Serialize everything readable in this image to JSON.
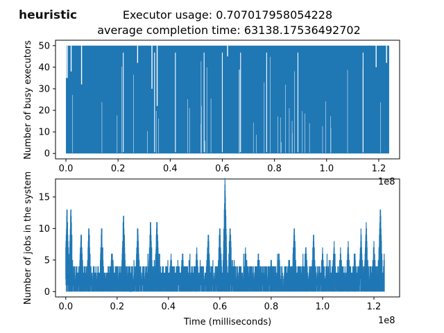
{
  "badge": "heuristic",
  "title_line1": "Executor usage: 0.707017958054228",
  "title_line2": "average completion time: 63138.17536492702",
  "colors": {
    "series": "#1f77b4",
    "axes": "#000000",
    "background": "#ffffff"
  },
  "chart_data": [
    {
      "type": "line",
      "ylabel": "Number of busy executors",
      "xlabel": "",
      "x_multiplier": "1e8",
      "xlim": [
        -0.04,
        1.28
      ],
      "ylim": [
        -2.5,
        52.5
      ],
      "xticks": [
        "0.0",
        "0.2",
        "0.4",
        "0.6",
        "0.8",
        "1.0",
        "1.2"
      ],
      "yticks": [
        "0",
        "10",
        "20",
        "30",
        "40",
        "50"
      ],
      "grid": false,
      "series": [
        {
          "x_range": [
            0.0,
            1.24
          ],
          "y_range": [
            0,
            50
          ],
          "baseline": 0,
          "saturation": 50,
          "gaps_x": [
            0.22,
            0.34,
            0.42,
            0.53,
            0.6,
            0.67,
            0.77,
            0.89,
            1.14
          ],
          "peaks": [
            {
              "x": 0.0,
              "y": 35
            },
            {
              "x": 0.005,
              "y": 35
            },
            {
              "x": 0.02,
              "y": 38
            },
            {
              "x": 0.06,
              "y": 32
            },
            {
              "x": 0.275,
              "y": 42
            },
            {
              "x": 0.33,
              "y": 30
            },
            {
              "x": 0.35,
              "y": 22
            },
            {
              "x": 0.62,
              "y": 45
            },
            {
              "x": 1.19,
              "y": 40
            },
            {
              "x": 1.23,
              "y": 42
            }
          ]
        }
      ]
    },
    {
      "type": "line",
      "ylabel": "Number of jobs in the system",
      "xlabel": "Time (milliseconds)",
      "x_multiplier": "1e8",
      "xlim": [
        -0.04,
        1.3
      ],
      "ylim": [
        -0.85,
        17.85
      ],
      "xticks": [
        "0.0",
        "0.2",
        "0.4",
        "0.6",
        "0.8",
        "1.0",
        "1.2"
      ],
      "yticks": [
        "0",
        "5",
        "10",
        "15"
      ],
      "grid": false,
      "series": [
        {
          "x_range": [
            0.0,
            1.24
          ],
          "y_range": [
            0,
            17
          ],
          "peaks": [
            {
              "x": 0.005,
              "y": 13
            },
            {
              "x": 0.02,
              "y": 13
            },
            {
              "x": 0.06,
              "y": 9
            },
            {
              "x": 0.09,
              "y": 10
            },
            {
              "x": 0.14,
              "y": 10
            },
            {
              "x": 0.18,
              "y": 6
            },
            {
              "x": 0.225,
              "y": 12
            },
            {
              "x": 0.28,
              "y": 10
            },
            {
              "x": 0.33,
              "y": 11
            },
            {
              "x": 0.355,
              "y": 11
            },
            {
              "x": 0.41,
              "y": 5
            },
            {
              "x": 0.455,
              "y": 6
            },
            {
              "x": 0.51,
              "y": 6
            },
            {
              "x": 0.555,
              "y": 9
            },
            {
              "x": 0.6,
              "y": 10
            },
            {
              "x": 0.62,
              "y": 17
            },
            {
              "x": 0.64,
              "y": 10
            },
            {
              "x": 0.7,
              "y": 6
            },
            {
              "x": 0.75,
              "y": 6
            },
            {
              "x": 0.8,
              "y": 5
            },
            {
              "x": 0.83,
              "y": 6
            },
            {
              "x": 0.87,
              "y": 5
            },
            {
              "x": 0.89,
              "y": 10
            },
            {
              "x": 0.935,
              "y": 7
            },
            {
              "x": 0.965,
              "y": 9
            },
            {
              "x": 1.0,
              "y": 6
            },
            {
              "x": 1.045,
              "y": 7
            },
            {
              "x": 1.07,
              "y": 6
            },
            {
              "x": 1.1,
              "y": 7
            },
            {
              "x": 1.125,
              "y": 6
            },
            {
              "x": 1.15,
              "y": 9
            },
            {
              "x": 1.17,
              "y": 10
            },
            {
              "x": 1.2,
              "y": 7
            },
            {
              "x": 1.225,
              "y": 13
            },
            {
              "x": 1.24,
              "y": 5
            }
          ]
        }
      ]
    }
  ]
}
